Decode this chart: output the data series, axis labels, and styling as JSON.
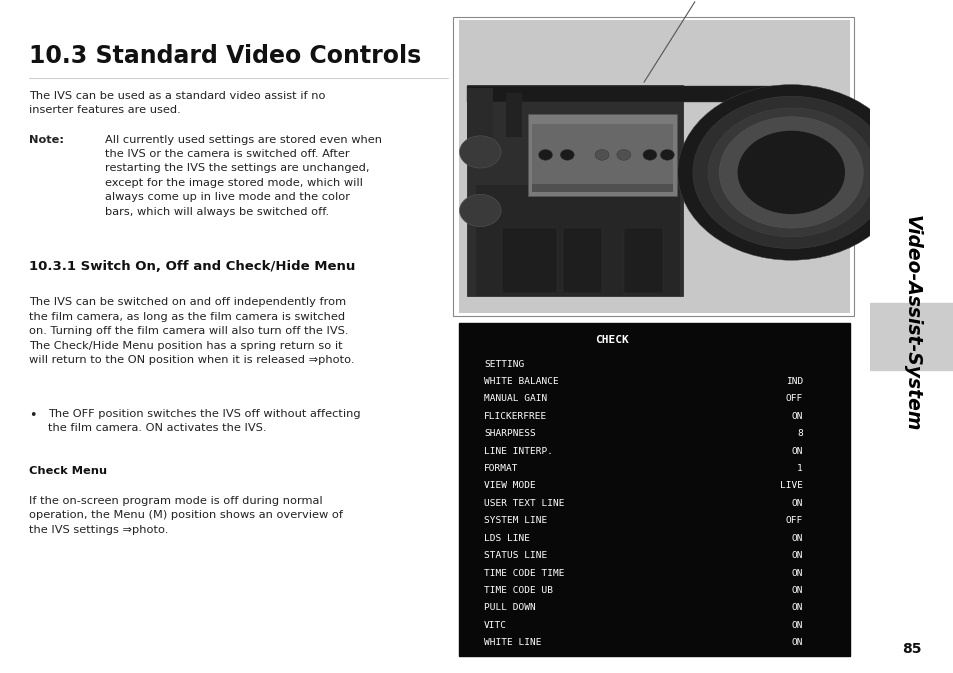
{
  "bg_color": "#ffffff",
  "sidebar_color": "#b3b3b3",
  "sidebar_tab_color": "#cccccc",
  "sidebar_text": "Video-Assist-System",
  "sidebar_text_color": "#000000",
  "page_number": "85",
  "title": "10.3 Standard Video Controls",
  "title_fontsize": 17,
  "body_fontsize": 8.2,
  "note_label": "Note:",
  "body_text_1": "The IVS can be used as a standard video assist if no\ninserter features are used.",
  "body_text_note": "All currently used settings are stored even when\nthe IVS or the camera is switched off. After\nrestarting the IVS the settings are unchanged,\nexcept for the image stored mode, which will\nalways come up in live mode and the color\nbars, which will always be switched off.",
  "section_title": "10.3.1 Switch On, Off and Check/Hide Menu",
  "body_text_2": "The IVS can be switched on and off independently from\nthe film camera, as long as the film camera is switched\non. Turning off the film camera will also turn off the IVS.\nThe Check/Hide Menu position has a spring return so it\nwill return to the ON position when it is released ⇒photo.",
  "bullet_text": "The OFF position switches the IVS off without affecting\nthe film camera. ON activates the IVS.",
  "check_menu_title": "Check Menu",
  "body_text_3": "If the on-screen program mode is off during normal\noperation, the Menu (M) position shows an overview of\nthe IVS settings ⇒photo.",
  "check_bg": "#0a0a0a",
  "check_text_color": "#ffffff",
  "check_title": "CHECK",
  "check_lines": [
    [
      "SETTING",
      ""
    ],
    [
      "WHITE BALANCE",
      "IND"
    ],
    [
      "MANUAL GAIN",
      "OFF"
    ],
    [
      "FLICKERFREE",
      "ON"
    ],
    [
      "SHARPNESS",
      "8"
    ],
    [
      "LINE INTERP.",
      "ON"
    ],
    [
      "FORMAT",
      "1"
    ],
    [
      "VIEW MODE",
      "LIVE"
    ],
    [
      "USER TEXT LINE",
      "ON"
    ],
    [
      "SYSTEM LINE",
      "OFF"
    ],
    [
      "LDS LINE",
      "ON"
    ],
    [
      "STATUS LINE",
      "ON"
    ],
    [
      "TIME CODE TIME",
      "ON"
    ],
    [
      "TIME CODE UB",
      "ON"
    ],
    [
      "PULL DOWN",
      "ON"
    ],
    [
      "VITC",
      "ON"
    ],
    [
      "WHITE LINE",
      "ON"
    ]
  ]
}
